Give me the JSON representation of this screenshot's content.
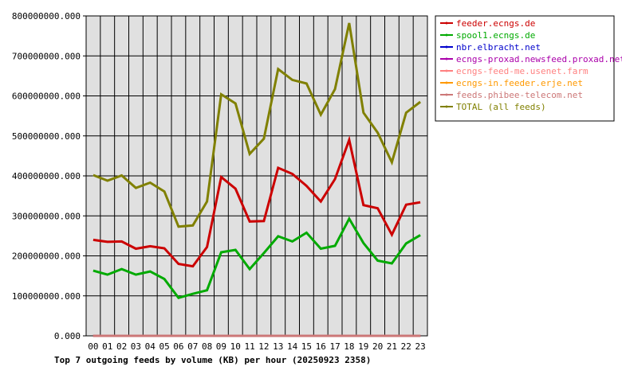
{
  "chart_data": {
    "type": "line",
    "title": "Top 7 outgoing feeds by volume (KB) per hour (20250923 2358)",
    "xlabel": "",
    "ylabel": "",
    "categories": [
      "00",
      "01",
      "02",
      "03",
      "04",
      "05",
      "06",
      "07",
      "08",
      "09",
      "10",
      "11",
      "12",
      "13",
      "14",
      "15",
      "16",
      "17",
      "18",
      "19",
      "20",
      "21",
      "22",
      "23"
    ],
    "ylim": [
      0,
      800000000
    ],
    "yticks": [
      "0.000",
      "100000000.000",
      "200000000.000",
      "300000000.000",
      "400000000.000",
      "500000000.000",
      "600000000.000",
      "700000000.000",
      "800000000.000"
    ],
    "grid": true,
    "legend_position": "right",
    "series": [
      {
        "name": "feeder.ecngs.de",
        "color": "#cc0000",
        "values": [
          240000000,
          235000000,
          236000000,
          218000000,
          224000000,
          219000000,
          180000000,
          174000000,
          222000000,
          397000000,
          368000000,
          286000000,
          287000000,
          420000000,
          405000000,
          375000000,
          336000000,
          392000000,
          490000000,
          327000000,
          319000000,
          253000000,
          328000000,
          334000000
        ]
      },
      {
        "name": "spool1.ecngs.de",
        "color": "#00aa00",
        "values": [
          163000000,
          153000000,
          167000000,
          153000000,
          161000000,
          142000000,
          95000000,
          105000000,
          114000000,
          209000000,
          215000000,
          167000000,
          207000000,
          249000000,
          236000000,
          258000000,
          218000000,
          225000000,
          293000000,
          232000000,
          188000000,
          181000000,
          231000000,
          252000000
        ]
      },
      {
        "name": "nbr.elbracht.net",
        "color": "#0000cc",
        "values": [
          0,
          0,
          0,
          0,
          0,
          0,
          0,
          0,
          0,
          0,
          0,
          0,
          0,
          0,
          0,
          0,
          0,
          0,
          0,
          0,
          0,
          0,
          0,
          0
        ]
      },
      {
        "name": "ecngs-proxad.newsfeed.proxad.net",
        "color": "#aa00aa",
        "values": [
          0,
          0,
          0,
          0,
          0,
          0,
          0,
          0,
          0,
          0,
          0,
          0,
          0,
          0,
          0,
          0,
          0,
          0,
          0,
          0,
          0,
          0,
          0,
          0
        ]
      },
      {
        "name": "ecngs-feed-me.usenet.farm",
        "color": "#ff8080",
        "values": [
          0,
          0,
          0,
          0,
          0,
          0,
          0,
          0,
          0,
          0,
          0,
          0,
          0,
          0,
          0,
          0,
          0,
          0,
          0,
          0,
          0,
          0,
          0,
          0
        ]
      },
      {
        "name": "ecngs-in.feeder.erje.net",
        "color": "#ff9900",
        "values": [
          0,
          0,
          0,
          0,
          0,
          0,
          0,
          0,
          0,
          0,
          0,
          0,
          0,
          0,
          0,
          0,
          0,
          0,
          0,
          0,
          0,
          0,
          0,
          0
        ]
      },
      {
        "name": "feeds.phibee-telecom.net",
        "color": "#cc7777",
        "values": [
          0,
          0,
          0,
          0,
          0,
          0,
          0,
          0,
          0,
          0,
          0,
          0,
          0,
          0,
          0,
          0,
          0,
          0,
          0,
          0,
          0,
          0,
          0,
          0
        ]
      },
      {
        "name": "TOTAL (all feeds)",
        "color": "#808000",
        "values": [
          402000000,
          388000000,
          401000000,
          370000000,
          383000000,
          361000000,
          273000000,
          276000000,
          336000000,
          604000000,
          581000000,
          455000000,
          493000000,
          667000000,
          640000000,
          631000000,
          553000000,
          617000000,
          782000000,
          558000000,
          508000000,
          434000000,
          558000000,
          585000000
        ]
      }
    ]
  }
}
